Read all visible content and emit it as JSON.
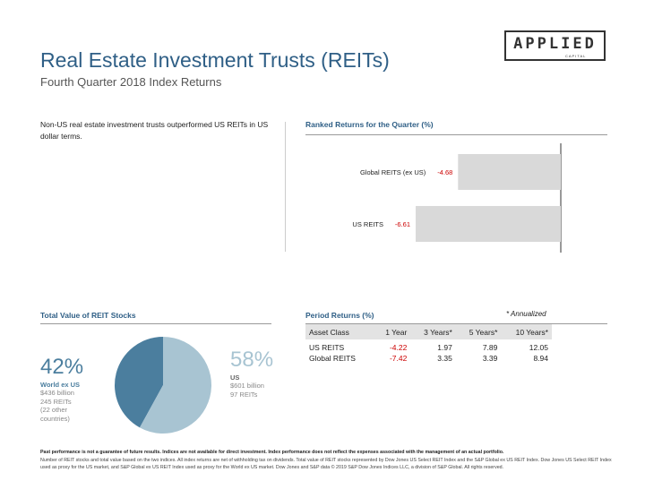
{
  "header": {
    "title": "Real Estate Investment Trusts (REITs)",
    "subtitle": "Fourth Quarter 2018 Index Returns",
    "logo": {
      "word": "APPLIED",
      "sub": "CAPITAL"
    }
  },
  "summary": "Non-US real estate investment trusts outperformed US REITs in US dollar terms.",
  "chart_data": [
    {
      "type": "bar",
      "orientation": "horizontal",
      "title": "Ranked Returns for the Quarter (%)",
      "categories": [
        "Global REITS (ex US)",
        "US REITS"
      ],
      "values": [
        -4.68,
        -6.61
      ],
      "value_labels": [
        "-4.68",
        "-6.61"
      ],
      "xlim": [
        -6.61,
        0
      ],
      "colors": {
        "bar": "#d9d9d9",
        "label": "#cc0000",
        "axis": "#333333"
      }
    },
    {
      "type": "pie",
      "title": "Total Value of REIT Stocks",
      "categories": [
        "World ex US",
        "US"
      ],
      "values": [
        42,
        58
      ],
      "colors": [
        "#4b7e9e",
        "#a8c4d2"
      ]
    }
  ],
  "pie_labels": {
    "world": {
      "pct": "42%",
      "name": "World ex US",
      "lines": [
        "$436 billion",
        "245 REITs",
        "(22 other",
        "countries)"
      ]
    },
    "us": {
      "pct": "58%",
      "name": "US",
      "lines": [
        "$601 billion",
        "97 REITs"
      ]
    }
  },
  "period_returns": {
    "title": "Period Returns (%)",
    "note": "* Annualized",
    "columns": [
      "Asset Class",
      "1 Year",
      "3 Years*",
      "5 Years*",
      "10 Years*"
    ],
    "rows": [
      {
        "name": "US REITS",
        "values": [
          "-4.22",
          "1.97",
          "7.89",
          "12.05"
        ]
      },
      {
        "name": "Global REITS",
        "values": [
          "-7.42",
          "3.35",
          "3.39",
          "8.94"
        ]
      }
    ]
  },
  "disclaimer": {
    "bold": "Past performance is not a guarantee of future results. Indices are not available for direct investment. Index performance does not reflect the expenses associated with the management of an actual portfolio.",
    "body": "Number of REIT stocks and total value based on the two indices. All index returns are net of withholding tax on dividends. Total value of REIT stocks represented by Dow Jones US Select REIT Index and the S&P Global ex US REIT Index. Dow Jones US Select REIT Index used as proxy for the US market, and S&P Global ex US REIT Index used as proxy for the World ex US market. Dow Jones and S&P data © 2019 S&P Dow Jones Indices LLC, a division of S&P Global. All rights reserved."
  }
}
